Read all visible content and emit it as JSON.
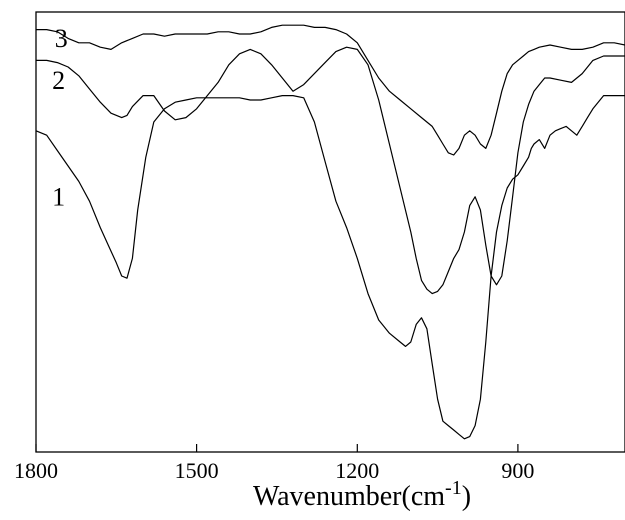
{
  "chart_data": {
    "type": "line",
    "title": "",
    "xlabel": "Wavenumber(cm",
    "xlabel_superscript": "-1",
    "xlabel_close": ")",
    "ylabel": "",
    "x_axis_reversed": true,
    "xlim": [
      1800,
      700
    ],
    "ylim": [
      0,
      100
    ],
    "x_ticks": [
      1800,
      1500,
      1200,
      900
    ],
    "x_tick_labels": [
      "1800",
      "1500",
      "1200",
      "900"
    ],
    "grid": false,
    "legend": "none",
    "line_color": "#000000",
    "series": [
      {
        "name": "1",
        "label_at": [
          1770,
          56
        ],
        "x": [
          1800,
          1780,
          1760,
          1740,
          1720,
          1700,
          1680,
          1665,
          1650,
          1640,
          1630,
          1620,
          1610,
          1595,
          1580,
          1560,
          1540,
          1520,
          1500,
          1480,
          1460,
          1440,
          1420,
          1400,
          1380,
          1360,
          1340,
          1320,
          1300,
          1280,
          1260,
          1240,
          1220,
          1200,
          1180,
          1160,
          1140,
          1120,
          1110,
          1100,
          1090,
          1080,
          1070,
          1060,
          1050,
          1040,
          1030,
          1020,
          1010,
          1000,
          990,
          980,
          970,
          960,
          950,
          940,
          930,
          920,
          910,
          900,
          890,
          880,
          875,
          870,
          860,
          850,
          840,
          830,
          820,
          810,
          800,
          790,
          780,
          770,
          760,
          740,
          720,
          700
        ],
        "values": [
          73,
          72,
          68.5,
          65,
          61.5,
          57,
          51,
          47,
          43,
          40,
          39.5,
          44,
          55,
          67,
          75,
          78,
          79.5,
          80,
          80.5,
          80.5,
          80.5,
          80.5,
          80.5,
          80,
          80,
          80.5,
          81,
          81,
          80.5,
          75,
          66,
          57,
          51,
          44,
          36,
          30,
          27,
          25,
          24,
          25,
          29,
          30.5,
          28,
          20,
          12,
          7,
          6,
          5,
          4,
          3,
          3.5,
          6,
          12,
          25,
          40,
          50,
          56,
          60,
          62,
          63,
          65,
          67,
          69,
          70,
          71,
          69,
          72,
          73,
          73.5,
          74,
          73,
          72,
          74,
          76,
          78,
          81,
          81,
          81
        ]
      },
      {
        "name": "2",
        "label_at": [
          1770,
          82.5
        ],
        "x": [
          1800,
          1780,
          1760,
          1740,
          1720,
          1700,
          1680,
          1660,
          1640,
          1630,
          1620,
          1600,
          1580,
          1560,
          1540,
          1520,
          1500,
          1480,
          1460,
          1440,
          1420,
          1400,
          1380,
          1360,
          1340,
          1320,
          1300,
          1280,
          1260,
          1240,
          1220,
          1200,
          1180,
          1160,
          1140,
          1120,
          1100,
          1090,
          1080,
          1070,
          1060,
          1050,
          1040,
          1030,
          1020,
          1010,
          1000,
          990,
          980,
          970,
          960,
          950,
          940,
          930,
          920,
          910,
          900,
          890,
          880,
          870,
          860,
          850,
          840,
          820,
          800,
          780,
          760,
          740,
          720,
          700
        ],
        "values": [
          89,
          89,
          88.5,
          87.5,
          85.5,
          82.5,
          79.5,
          77,
          76,
          76.5,
          78.5,
          81,
          81,
          77.5,
          75.5,
          76,
          78,
          81,
          84,
          88,
          90.5,
          91.5,
          90.5,
          88,
          85,
          82,
          83.5,
          86,
          88.5,
          91,
          92,
          91.5,
          88,
          80,
          70,
          60,
          50,
          44,
          39,
          37,
          36,
          36.5,
          38,
          41,
          44,
          46,
          50,
          56,
          58,
          55,
          47,
          40,
          38,
          40,
          48,
          58,
          68,
          75,
          79,
          82,
          83.5,
          85,
          85,
          84.5,
          84,
          86,
          89,
          90,
          90,
          90
        ]
      },
      {
        "name": "3",
        "label_at": [
          1765,
          92
        ],
        "x": [
          1800,
          1780,
          1760,
          1740,
          1720,
          1700,
          1680,
          1660,
          1640,
          1620,
          1600,
          1580,
          1560,
          1540,
          1520,
          1500,
          1480,
          1460,
          1440,
          1420,
          1400,
          1380,
          1360,
          1340,
          1320,
          1300,
          1280,
          1260,
          1240,
          1220,
          1200,
          1180,
          1160,
          1140,
          1120,
          1100,
          1080,
          1060,
          1050,
          1040,
          1030,
          1020,
          1010,
          1000,
          990,
          980,
          970,
          960,
          950,
          940,
          930,
          920,
          910,
          900,
          890,
          880,
          870,
          860,
          840,
          820,
          800,
          780,
          760,
          740,
          720,
          700
        ],
        "values": [
          96,
          96,
          95.5,
          94,
          93,
          93,
          92,
          91.5,
          93,
          94,
          95,
          95,
          94.5,
          95,
          95,
          95,
          95,
          95.5,
          95.5,
          95,
          95,
          95.5,
          96.5,
          97,
          97,
          97,
          96.5,
          96.5,
          96,
          95,
          93,
          89,
          85,
          82,
          80,
          78,
          76,
          74,
          72,
          70,
          68,
          67.5,
          69,
          72,
          73,
          72,
          70,
          69,
          72,
          77,
          82,
          86,
          88,
          89,
          90,
          91,
          91.5,
          92,
          92.5,
          92,
          91.5,
          91.5,
          92,
          93,
          93,
          92.5
        ]
      }
    ]
  }
}
